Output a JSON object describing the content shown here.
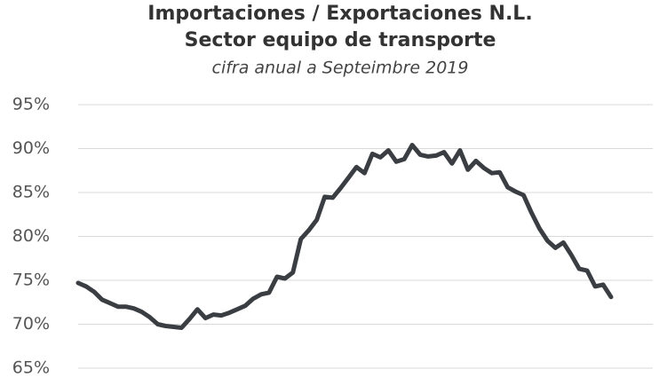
{
  "chart_data": {
    "type": "line",
    "title": "Importaciones / Exportaciones N.L.",
    "subtitle": "Sector equipo de transporte",
    "annotation": "cifra anual a Septeimbre 2019",
    "color": "#3a3d42",
    "grid": true,
    "ylim": [
      65,
      95
    ],
    "yticks": [
      {
        "value": 95,
        "label": "95%"
      },
      {
        "value": 90,
        "label": "90%"
      },
      {
        "value": 85,
        "label": "85%"
      },
      {
        "value": 80,
        "label": "80%"
      },
      {
        "value": 75,
        "label": "75%"
      },
      {
        "value": 70,
        "label": "70%"
      },
      {
        "value": 65,
        "label": "65%"
      }
    ],
    "values": [
      74.7,
      74.3,
      73.7,
      72.8,
      72.4,
      72.0,
      72.0,
      71.8,
      71.4,
      70.8,
      70.0,
      69.8,
      69.7,
      69.6,
      70.6,
      71.7,
      70.7,
      71.1,
      71.0,
      71.3,
      71.7,
      72.1,
      72.9,
      73.4,
      73.6,
      75.4,
      75.2,
      75.9,
      79.7,
      80.7,
      81.9,
      84.5,
      84.4,
      85.5,
      86.7,
      87.9,
      87.2,
      89.4,
      89.0,
      89.8,
      88.5,
      88.8,
      90.4,
      89.3,
      89.1,
      89.2,
      89.6,
      88.3,
      89.8,
      87.6,
      88.6,
      87.8,
      87.2,
      87.3,
      85.6,
      85.1,
      84.7,
      82.7,
      80.9,
      79.5,
      78.7,
      79.3,
      77.9,
      76.3,
      76.1,
      74.3,
      74.5,
      73.1
    ]
  }
}
